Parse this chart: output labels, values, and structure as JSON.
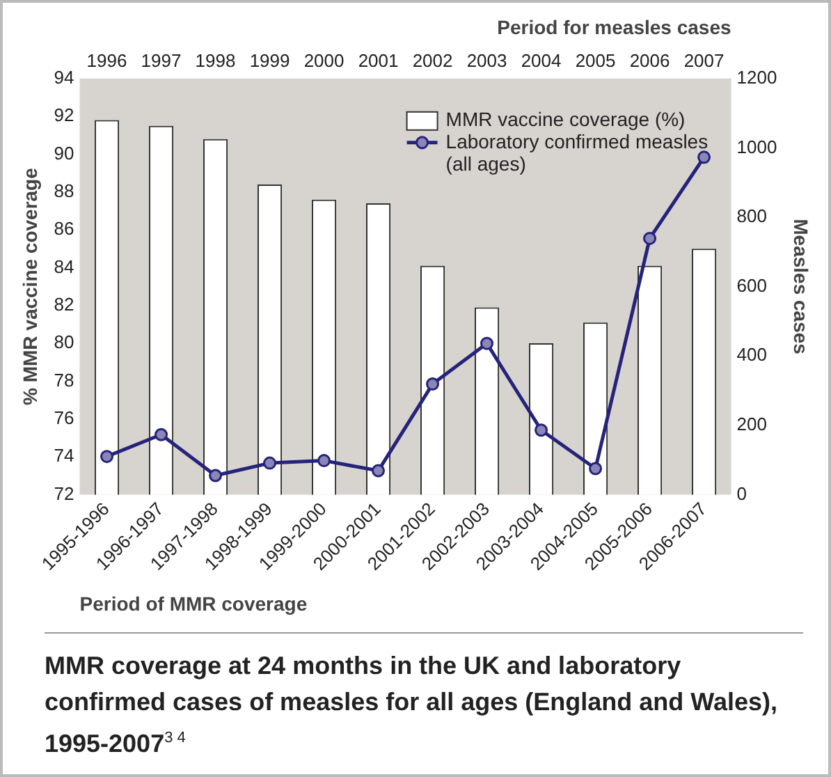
{
  "chart_data": {
    "type": "bar",
    "title": "MMR coverage at 24 months in the UK and laboratory confirmed cases of measles for all ages (England and Wales), 1995-2007$^{3 4}$",
    "xlabel": "Period of MMR coverage",
    "x2label": "Period for measles cases",
    "ylabel": "% MMR vaccine coverage",
    "y2label": "Measles cases",
    "categories": [
      "1995-1996",
      "1996-1997",
      "1997-1998",
      "1998-1999",
      "1999-2000",
      "2000-2001",
      "2001-2002",
      "2002-2003",
      "2003-2004",
      "2004-2005",
      "2005-2006",
      "2006-2007"
    ],
    "series": [
      {
        "name": "MMR vaccine coverage (%)",
        "color": "#ffffff",
        "values": [
          91.8,
          91.5,
          90.8,
          88.4,
          87.6,
          87.4,
          84.1,
          81.9,
          80.0,
          81.1,
          84.1,
          85.0
        ]
      },
      {
        "name": "Laboratory confirmed measles (all ages)",
        "type": "line",
        "axis": "y2",
        "color": "#25237a",
        "marker": "circle",
        "values": [
          110,
          173,
          55,
          91,
          98,
          69,
          319,
          436,
          186,
          75,
          739,
          973
        ]
      }
    ],
    "ylim": [
      72,
      94
    ],
    "yticks": [
      72,
      74,
      76,
      78,
      80,
      82,
      84,
      86,
      88,
      90,
      92,
      94
    ],
    "y2lim": [
      0,
      1200
    ],
    "y2ticks": [
      0,
      200,
      400,
      600,
      800,
      1000,
      1200
    ],
    "x2lim": [
      1995.5,
      2007.5
    ],
    "x2ticks": [
      1996,
      1997,
      1998,
      1999,
      2000,
      2001,
      2002,
      2003,
      2004,
      2005,
      2006,
      2007
    ],
    "grid": false,
    "legend": "top right"
  }
}
